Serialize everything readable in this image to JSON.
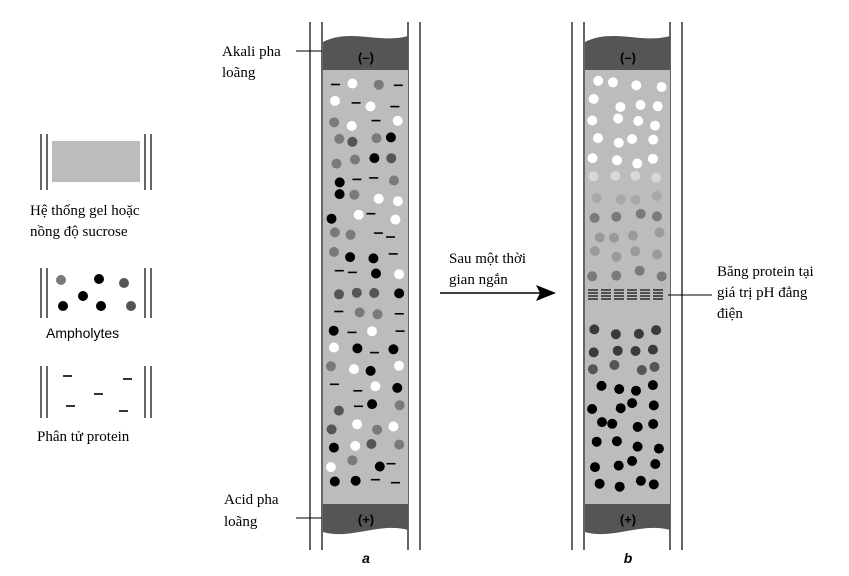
{
  "legend": {
    "gel_label_line1": "Hệ thống gel hoặc",
    "gel_label_line2": "nồng độ sucrose",
    "ampholytes_label": "Ampholytes",
    "protein_label": "Phân tử protein"
  },
  "tube_a": {
    "top_label_line1": "Akali pha",
    "top_label_line2": "loãng",
    "bottom_label_line1": "Acid pha",
    "bottom_label_line2": "loãng",
    "top_electrode": "(–)",
    "bottom_electrode": "(+)",
    "caption": "a"
  },
  "arrow": {
    "label_line1": "Sau một thời",
    "label_line2": "gian ngắn"
  },
  "tube_b": {
    "top_electrode": "(–)",
    "bottom_electrode": "(+)",
    "caption": "b",
    "band_label_line1": "Băng protein tại",
    "band_label_line2": "giá trị pH đẳng",
    "band_label_line3": "điện"
  },
  "colors": {
    "gel": "#bcbcbc",
    "electrode": "#555555",
    "ampholyte_white": "#ffffff",
    "ampholyte_gray": "#7a7a7a",
    "ampholyte_black": "#000000",
    "outline": "#000000"
  }
}
